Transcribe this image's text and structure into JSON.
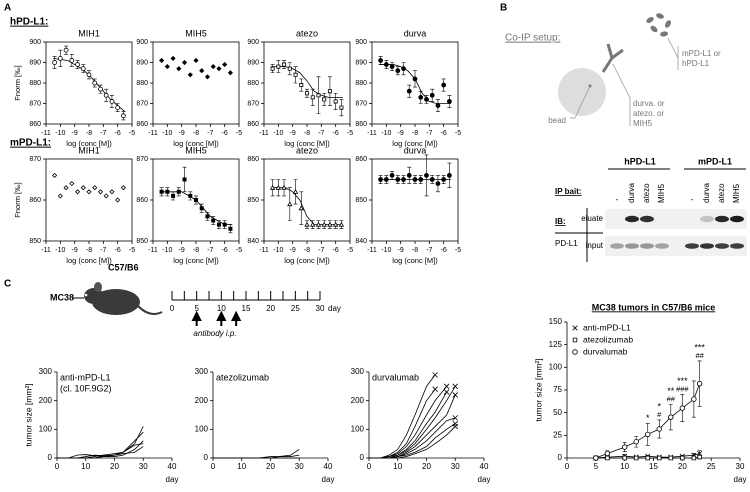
{
  "panels": [
    "A",
    "B",
    "C"
  ],
  "sections": [
    "hPD-L1:",
    "mPD-L1:"
  ],
  "coip": {
    "title": "Co-IP setup:",
    "target_label": [
      "mPD-L1 or",
      "hPD-L1"
    ],
    "antibody_label": [
      "durva. or",
      "atezo. or",
      "MIH5"
    ],
    "bead_label": "bead"
  },
  "blot": {
    "groups": [
      "hPD-L1",
      "mPD-L1"
    ],
    "bait_label": "IP bait:",
    "lanes": [
      "-",
      "durva",
      "atezo",
      "MIH5",
      "-",
      "durva",
      "atezo",
      "MIH5"
    ],
    "ib_label": "IB:",
    "ib_target": "PD-L1",
    "rows": [
      "eluate",
      "input"
    ]
  },
  "timeline": {
    "model": "MC38",
    "strain": "C57/B6",
    "xlim": [
      0,
      30
    ],
    "xticks": [
      0,
      5,
      10,
      15,
      20,
      25,
      30
    ],
    "minor_ticks": [
      2.5,
      7.5,
      12.5,
      17.5,
      22.5,
      27.5
    ],
    "unit": "day",
    "injection_days": [
      5,
      10,
      13
    ],
    "injection_label": "antibody i.p."
  },
  "chart_data": [
    {
      "type": "scatter",
      "title": "MIH1",
      "ylabel": "Fnorm [‰]",
      "xlabel": "log (conc [M])",
      "marker": "circle",
      "filled": false,
      "color": "#000",
      "xlim": [
        -11,
        -5
      ],
      "xticks": [
        -11,
        -10,
        -9,
        -8,
        -7,
        -6,
        -5
      ],
      "ylim": [
        860,
        900
      ],
      "yticks": [
        860,
        870,
        880,
        890,
        900
      ],
      "x": [
        -10.4,
        -10,
        -9.6,
        -9.2,
        -8.8,
        -8.4,
        -8,
        -7.6,
        -7.2,
        -6.8,
        -6.4,
        -6,
        -5.6
      ],
      "values": [
        890,
        892,
        896,
        891,
        889,
        887,
        884,
        880,
        877,
        874,
        871,
        868,
        864
      ],
      "errors": [
        3,
        4,
        2,
        3,
        2,
        2,
        2,
        2,
        2,
        3,
        3,
        2,
        2
      ],
      "fit": {
        "x": [
          -10.5,
          -9.5,
          -9,
          -8.5,
          -8,
          -7.5,
          -7,
          -6.5,
          -6,
          -5.5
        ],
        "values": [
          892,
          891,
          889,
          887,
          884,
          880,
          876,
          872,
          869,
          866
        ]
      }
    },
    {
      "type": "scatter",
      "title": "MIH5",
      "xlabel": "log (conc [M])",
      "marker": "diamond",
      "filled": true,
      "color": "#000",
      "xlim": [
        -11,
        -5
      ],
      "xticks": [
        -11,
        -10,
        -9,
        -8,
        -7,
        -6,
        -5
      ],
      "ylim": [
        860,
        900
      ],
      "yticks": [
        860,
        870,
        880,
        890,
        900
      ],
      "x": [
        -10.4,
        -10,
        -9.6,
        -9.2,
        -8.8,
        -8.4,
        -8,
        -7.6,
        -7.2,
        -6.8,
        -6.4,
        -6,
        -5.6
      ],
      "values": [
        891,
        888,
        892,
        887,
        890,
        884,
        891,
        886,
        883,
        888,
        887,
        889,
        885
      ]
    },
    {
      "type": "scatter",
      "title": "atezo",
      "xlabel": "log (conc [M])",
      "marker": "square",
      "filled": false,
      "color": "#000",
      "xlim": [
        -11,
        -5
      ],
      "xticks": [
        -11,
        -10,
        -9,
        -8,
        -7,
        -6,
        -5
      ],
      "ylim": [
        860,
        900
      ],
      "yticks": [
        860,
        870,
        880,
        890,
        900
      ],
      "x": [
        -10.4,
        -10,
        -9.6,
        -9.2,
        -8.8,
        -8.4,
        -8,
        -7.6,
        -7.2,
        -6.8,
        -6.4,
        -6,
        -5.6
      ],
      "values": [
        887,
        888,
        889,
        887,
        884,
        879,
        875,
        873,
        874,
        872,
        876,
        871,
        868
      ],
      "errors": [
        2,
        3,
        2,
        3,
        4,
        3,
        2,
        4,
        9,
        3,
        7,
        4,
        4
      ],
      "fit": {
        "x": [
          -10.5,
          -9.5,
          -9,
          -8.5,
          -8,
          -7.5,
          -7,
          -6.5,
          -6,
          -5.5
        ],
        "values": [
          888,
          888,
          887,
          885,
          881,
          876,
          874,
          873,
          873,
          873
        ]
      }
    },
    {
      "type": "scatter",
      "title": "durva",
      "xlabel": "log (conc [M])",
      "marker": "circle",
      "filled": true,
      "color": "#000",
      "xlim": [
        -11,
        -5
      ],
      "xticks": [
        -11,
        -10,
        -9,
        -8,
        -7,
        -6,
        -5
      ],
      "ylim": [
        860,
        900
      ],
      "yticks": [
        860,
        870,
        880,
        890,
        900
      ],
      "x": [
        -10.4,
        -10,
        -9.6,
        -9.2,
        -8.8,
        -8.4,
        -8,
        -7.6,
        -7.2,
        -6.8,
        -6.4,
        -6,
        -5.6
      ],
      "values": [
        891,
        889,
        888,
        886,
        887,
        876,
        882,
        873,
        872,
        874,
        869,
        879,
        871
      ],
      "errors": [
        2,
        2,
        2,
        2,
        3,
        3,
        4,
        3,
        2,
        3,
        3,
        3,
        3
      ],
      "fit": {
        "x": [
          -10.5,
          -9.5,
          -9,
          -8.5,
          -8,
          -7.5,
          -7,
          -6.5,
          -6,
          -5.5
        ],
        "values": [
          889,
          889,
          888,
          886,
          882,
          875,
          871,
          870,
          870,
          870
        ]
      }
    },
    {
      "type": "scatter",
      "title": "MIH1",
      "ylabel": "Fnorm [‰]",
      "xlabel": "log (conc [M])",
      "marker": "diamond",
      "filled": false,
      "color": "#000",
      "xlim": [
        -11,
        -5
      ],
      "xticks": [
        -11,
        -10,
        -9,
        -8,
        -7,
        -6,
        -5
      ],
      "ylim": [
        850,
        870
      ],
      "yticks": [
        850,
        860,
        870
      ],
      "x": [
        -10.4,
        -10,
        -9.6,
        -9.2,
        -8.8,
        -8.4,
        -8,
        -7.6,
        -7.2,
        -6.8,
        -6.4,
        -6,
        -5.6
      ],
      "values": [
        866,
        861,
        863,
        864,
        862,
        863,
        862,
        863,
        862,
        861,
        862,
        860,
        863
      ]
    },
    {
      "type": "scatter",
      "title": "MIH5",
      "xlabel": "log (conc [M])",
      "marker": "square",
      "filled": true,
      "color": "#000",
      "xlim": [
        -11,
        -5
      ],
      "xticks": [
        -11,
        -10,
        -9,
        -8,
        -7,
        -6,
        -5
      ],
      "ylim": [
        850,
        870
      ],
      "yticks": [
        850,
        860,
        870
      ],
      "x": [
        -10.4,
        -10,
        -9.6,
        -9.2,
        -8.8,
        -8.4,
        -8,
        -7.6,
        -7.2,
        -6.8,
        -6.4,
        -6,
        -5.6
      ],
      "values": [
        862,
        862,
        861,
        862,
        865,
        861,
        860,
        858,
        856,
        855,
        854,
        854,
        853
      ],
      "errors": [
        1,
        1,
        1,
        1,
        3,
        1,
        1,
        1,
        1,
        1,
        1,
        1,
        1
      ],
      "fit": {
        "x": [
          -10.5,
          -9.5,
          -9,
          -8.5,
          -8,
          -7.5,
          -7,
          -6.5,
          -6,
          -5.5
        ],
        "values": [
          862,
          862,
          862,
          861,
          860,
          858,
          856,
          855,
          854,
          854
        ]
      }
    },
    {
      "type": "scatter",
      "title": "atezo",
      "xlabel": "log (conc [M])",
      "marker": "triangle",
      "filled": false,
      "color": "#000",
      "xlim": [
        -11,
        -5
      ],
      "xticks": [
        -11,
        -10,
        -9,
        -8,
        -7,
        -6,
        -5
      ],
      "ylim": [
        840,
        860
      ],
      "yticks": [
        840,
        850,
        860
      ],
      "x": [
        -10.4,
        -10,
        -9.6,
        -9.2,
        -8.8,
        -8.4,
        -8,
        -7.6,
        -7.2,
        -6.8,
        -6.4,
        -6,
        -5.6
      ],
      "values": [
        853,
        853,
        853,
        849,
        852,
        848,
        844,
        844,
        844,
        844,
        844,
        844,
        844
      ],
      "errors": [
        2,
        2,
        2,
        4,
        3,
        4,
        1,
        1,
        1,
        1,
        1,
        1,
        1
      ],
      "fit": {
        "x": [
          -10.5,
          -9.5,
          -9,
          -8.5,
          -8,
          -7.5,
          -7,
          -6.5,
          -6,
          -5.5
        ],
        "values": [
          853,
          853,
          852,
          850,
          846,
          844,
          844,
          844,
          844,
          844
        ]
      }
    },
    {
      "type": "scatter",
      "title": "durva",
      "xlabel": "log (conc [M])",
      "marker": "circle",
      "filled": true,
      "color": "#000",
      "xlim": [
        -11,
        -5
      ],
      "xticks": [
        -11,
        -10,
        -9,
        -8,
        -7,
        -6,
        -5
      ],
      "ylim": [
        840,
        860
      ],
      "yticks": [
        840,
        850,
        860
      ],
      "x": [
        -10.4,
        -10,
        -9.6,
        -9.2,
        -8.8,
        -8.4,
        -8,
        -7.6,
        -7.2,
        -6.8,
        -6.4,
        -6,
        -5.6
      ],
      "values": [
        855,
        855,
        856,
        855,
        855,
        856,
        855,
        855,
        856,
        855,
        854,
        855,
        856
      ],
      "errors": [
        1,
        1,
        1,
        1,
        1,
        2,
        1,
        1,
        5,
        1,
        2,
        1,
        3
      ],
      "fit": {
        "x": [
          -10.5,
          -9.5,
          -9,
          -8.5,
          -8,
          -7.5,
          -7,
          -6.5,
          -6,
          -5.5
        ],
        "values": [
          855,
          855,
          855,
          855,
          855,
          855,
          855,
          855,
          855,
          855
        ]
      }
    },
    {
      "type": "line",
      "title": "anti-mPD-L1",
      "subtitle": "(cl. 10F.9G2)",
      "ylabel": "tumor size [mm²]",
      "xlabel": "day",
      "color": "#000",
      "xlim": [
        0,
        40
      ],
      "xticks": [
        0,
        10,
        20,
        30,
        40
      ],
      "ylim": [
        0,
        300
      ],
      "yticks": [
        0,
        100,
        200,
        300
      ],
      "x": [
        0,
        4,
        7,
        10,
        13,
        16,
        20,
        23,
        27,
        30
      ],
      "series": [
        {
          "values": [
            0,
            0,
            0,
            5,
            10,
            8,
            10,
            20,
            50,
            110
          ]
        },
        {
          "values": [
            0,
            0,
            0,
            0,
            5,
            10,
            15,
            20,
            60,
            90
          ]
        },
        {
          "values": [
            0,
            0,
            0,
            0,
            0,
            5,
            5,
            10,
            30,
            60
          ]
        },
        {
          "values": [
            0,
            0,
            10,
            12,
            8,
            5,
            10,
            15,
            20,
            40
          ]
        },
        {
          "values": [
            0,
            0,
            0,
            0,
            0,
            5,
            10,
            20,
            45,
            50
          ]
        }
      ]
    },
    {
      "type": "line",
      "title": "atezolizumab",
      "xlabel": "day",
      "color": "#000",
      "xlim": [
        0,
        40
      ],
      "xticks": [
        0,
        10,
        20,
        30,
        40
      ],
      "ylim": [
        0,
        300
      ],
      "yticks": [
        0,
        100,
        200,
        300
      ],
      "x": [
        0,
        4,
        7,
        10,
        13,
        16,
        20,
        23,
        27,
        30
      ],
      "series": [
        {
          "values": [
            0,
            0,
            0,
            0,
            0,
            0,
            5,
            5,
            10,
            30
          ]
        },
        {
          "values": [
            0,
            0,
            0,
            0,
            0,
            0,
            0,
            5,
            5,
            10
          ]
        },
        {
          "values": [
            0,
            0,
            0,
            0,
            0,
            0,
            0,
            0,
            0,
            0
          ]
        }
      ]
    },
    {
      "type": "line",
      "title": "durvalumab",
      "xlabel": "day",
      "color": "#000",
      "end_marker": "x",
      "xlim": [
        0,
        40
      ],
      "xticks": [
        0,
        10,
        20,
        30,
        40
      ],
      "ylim": [
        0,
        300
      ],
      "yticks": [
        0,
        100,
        200,
        300
      ],
      "x": [
        0,
        4,
        7,
        10,
        13,
        16,
        20,
        23,
        27,
        30
      ],
      "series": [
        {
          "values": [
            0,
            0,
            10,
            30,
            80,
            150,
            250,
            290,
            null,
            null
          ]
        },
        {
          "values": [
            0,
            0,
            5,
            20,
            50,
            110,
            200,
            240,
            null,
            null
          ]
        },
        {
          "values": [
            0,
            0,
            5,
            15,
            40,
            80,
            150,
            200,
            250,
            null
          ]
        },
        {
          "values": [
            0,
            0,
            0,
            10,
            30,
            60,
            120,
            160,
            230,
            null
          ]
        },
        {
          "values": [
            0,
            0,
            5,
            10,
            25,
            50,
            100,
            140,
            200,
            250
          ]
        },
        {
          "values": [
            0,
            0,
            0,
            5,
            20,
            40,
            80,
            110,
            150,
            220
          ]
        },
        {
          "values": [
            0,
            0,
            0,
            5,
            15,
            30,
            60,
            90,
            130,
            140
          ]
        },
        {
          "values": [
            0,
            0,
            0,
            5,
            10,
            20,
            40,
            70,
            100,
            120
          ]
        },
        {
          "values": [
            0,
            0,
            0,
            0,
            5,
            15,
            30,
            50,
            80,
            110
          ]
        }
      ]
    },
    {
      "type": "line",
      "title": "MC38 tumors in C57/B6 mice",
      "ylabel": "tumor size [mm²]",
      "xlabel": "day",
      "color": "#000",
      "legend": "upper left",
      "xlim": [
        0,
        30
      ],
      "xticks": [
        0,
        5,
        10,
        15,
        20,
        25,
        30
      ],
      "ylim": [
        0,
        150
      ],
      "yticks": [
        0,
        25,
        50,
        75,
        100,
        125,
        150
      ],
      "x": [
        5,
        7,
        10,
        12,
        14,
        16,
        18,
        20,
        22,
        23
      ],
      "series": [
        {
          "name": "anti-mPD-L1",
          "marker": "x",
          "filled": false,
          "values": [
            0,
            1,
            2,
            1,
            2,
            1,
            1,
            2,
            3,
            5
          ],
          "errors": [
            0,
            1,
            2,
            1,
            1,
            1,
            1,
            1,
            2,
            3
          ]
        },
        {
          "name": "atezolizumab",
          "marker": "square",
          "filled": false,
          "values": [
            0,
            0,
            0,
            0,
            0,
            0,
            0,
            0,
            0,
            1
          ],
          "errors": [
            0,
            0,
            0,
            0,
            0,
            0,
            0,
            0,
            0,
            1
          ]
        },
        {
          "name": "durvalumab",
          "marker": "circle",
          "filled": false,
          "values": [
            0,
            5,
            12,
            18,
            26,
            32,
            45,
            55,
            65,
            82
          ],
          "errors": [
            1,
            3,
            5,
            6,
            12,
            10,
            14,
            15,
            20,
            25
          ],
          "significance": [
            null,
            null,
            null,
            null,
            "*",
            "*",
            "**",
            "***",
            null,
            "***"
          ],
          "significance_2": [
            null,
            null,
            null,
            null,
            null,
            "#",
            "##",
            "###",
            null,
            "##"
          ]
        }
      ]
    }
  ]
}
